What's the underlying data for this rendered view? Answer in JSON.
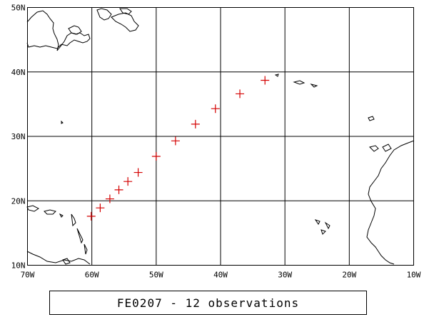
{
  "map": {
    "lon_range": [
      -70,
      -10
    ],
    "lat_range": [
      10,
      50
    ],
    "grid_step_deg": 10,
    "grid": true,
    "x_ticks": [
      "70W",
      "60W",
      "50W",
      "40W",
      "30W",
      "20W",
      "10W"
    ],
    "y_ticks": [
      "10N",
      "20N",
      "30N",
      "40N",
      "50N"
    ],
    "marker_color": "#d40000",
    "marker_symbol": "plus"
  },
  "chart_data": {
    "type": "scatter",
    "x": [
      -60.1,
      -58.7,
      -57.2,
      -55.8,
      -54.4,
      -52.8,
      -50.0,
      -47.0,
      -43.9,
      -40.8,
      -37.0,
      -33.1
    ],
    "y": [
      17.6,
      18.9,
      20.3,
      21.7,
      23.0,
      24.4,
      26.9,
      29.3,
      31.9,
      34.3,
      36.6,
      38.7
    ],
    "xlabel": "",
    "ylabel": "",
    "xlim": [
      -70,
      -10
    ],
    "ylim": [
      10,
      50
    ],
    "grid": true
  },
  "caption": {
    "text": "FE0207 - 12 observations"
  }
}
